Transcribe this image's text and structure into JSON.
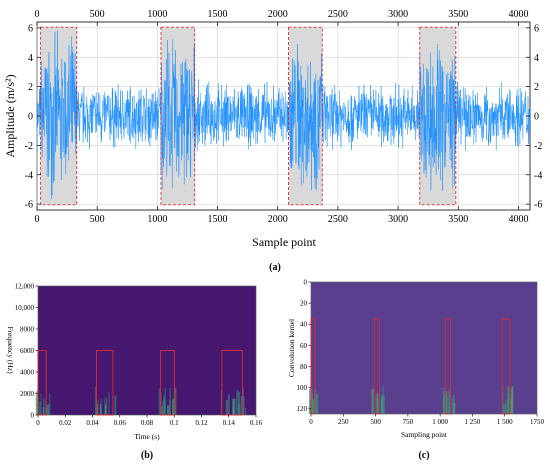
{
  "chart_data": [
    {
      "panel": "(a)",
      "type": "line",
      "xlabel": "Sample point",
      "ylabel": "Amplitude (m/s²)",
      "xlim": [
        0,
        4096
      ],
      "ylim": [
        -6.4,
        6.4
      ],
      "x_ticks": [
        "0",
        "500",
        "1000",
        "1500",
        "2000",
        "2500",
        "3000",
        "3500",
        "4000"
      ],
      "y_ticks": [
        "6",
        "4",
        "2",
        "0",
        "-2",
        "-4",
        "-6"
      ],
      "colors": {
        "signal": "#1e90ff",
        "highlight": "#d9d9d9",
        "highlight_border": "#e0282e"
      },
      "baseline_amplitude": 2.5,
      "highlight_regions": [
        {
          "start": 30,
          "end": 330,
          "amplitude": 6.0
        },
        {
          "start": 1030,
          "end": 1310,
          "amplitude": 6.0
        },
        {
          "start": 2090,
          "end": 2370,
          "amplitude": 6.0
        },
        {
          "start": 3180,
          "end": 3480,
          "amplitude": 6.0
        }
      ]
    },
    {
      "panel": "(b)",
      "type": "heatmap",
      "xlabel": "Time (s)",
      "ylabel": "Frequency (Hz)",
      "xlim": [
        0,
        0.16
      ],
      "ylim": [
        0,
        12000
      ],
      "x_ticks": [
        "0",
        "0.02",
        "0.04",
        "0.06",
        "0.08",
        "0.1",
        "0.12",
        "0.14",
        "0.16"
      ],
      "y_ticks": [
        "12,000",
        "10,000",
        "8000",
        "6000",
        "4000",
        "2000",
        "0"
      ],
      "colors": {
        "background": "#46176e",
        "box": "#e0282e"
      },
      "boxes": [
        {
          "x0": 0.0,
          "x1": 0.006,
          "y0": 0,
          "y1": 6000
        },
        {
          "x0": 0.043,
          "x1": 0.055,
          "y0": 0,
          "y1": 6000
        },
        {
          "x0": 0.09,
          "x1": 0.1,
          "y0": 0,
          "y1": 6000
        },
        {
          "x0": 0.135,
          "x1": 0.15,
          "y0": 0,
          "y1": 6000
        }
      ]
    },
    {
      "panel": "(c)",
      "type": "heatmap",
      "xlabel": "Sampling point",
      "ylabel": "Convolution kernel",
      "xlim": [
        0,
        1750
      ],
      "ylim": [
        0,
        125
      ],
      "x_ticks": [
        "0",
        "250",
        "500",
        "750",
        "1 000",
        "1 250",
        "1 500",
        "1750"
      ],
      "y_ticks": [
        "0",
        "20",
        "40",
        "60",
        "80",
        "100",
        "120"
      ],
      "colors": {
        "background": "#5b3f8f",
        "box": "#e0282e"
      },
      "boxes": [
        {
          "x0": 0,
          "x1": 30,
          "y0": 35,
          "y1": 125
        },
        {
          "x0": 490,
          "x1": 530,
          "y0": 35,
          "y1": 125
        },
        {
          "x0": 1040,
          "x1": 1080,
          "y0": 35,
          "y1": 125
        },
        {
          "x0": 1480,
          "x1": 1540,
          "y0": 35,
          "y1": 125
        }
      ]
    }
  ]
}
